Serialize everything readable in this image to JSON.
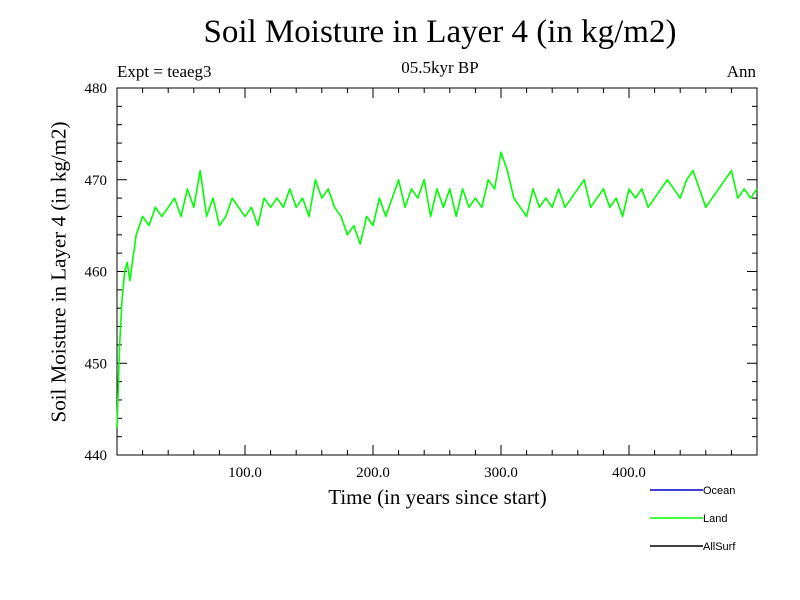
{
  "header": {
    "title": "Soil Moisture in Layer 4 (in kg/m2)",
    "subtitle": "05.5kyr BP",
    "expt": "Expt = teaeg3",
    "season": "Ann"
  },
  "chart_data": {
    "type": "line",
    "title": "Soil Moisture in Layer 4 (in kg/m2)",
    "subtitle": "05.5kyr BP",
    "xlabel": "Time (in years since start)",
    "ylabel": "Soil Moisture in Layer 4 (in kg/m2)",
    "xlim": [
      0,
      500
    ],
    "ylim": [
      440,
      480
    ],
    "xticks": [
      100,
      200,
      300,
      400
    ],
    "xtick_labels": [
      "100.0",
      "200.0",
      "300.0",
      "400.0"
    ],
    "yticks": [
      440,
      450,
      460,
      470,
      480
    ],
    "ytick_labels": [
      "440",
      "450",
      "460",
      "470",
      "480"
    ],
    "grid": false,
    "legend": {
      "position": "bottom-right",
      "entries": [
        {
          "name": "Ocean",
          "color": "#0000cc"
        },
        {
          "name": "Land",
          "color": "#00ff00"
        },
        {
          "name": "AllSurf",
          "color": "#000000"
        }
      ]
    },
    "series": [
      {
        "name": "Land",
        "color": "#00ff00",
        "x_step": 5,
        "x": [
          0,
          2,
          4,
          6,
          8,
          10,
          15,
          20,
          25,
          30,
          35,
          40,
          45,
          50,
          55,
          60,
          65,
          70,
          75,
          80,
          85,
          90,
          95,
          100,
          105,
          110,
          115,
          120,
          125,
          130,
          135,
          140,
          145,
          150,
          155,
          160,
          165,
          170,
          175,
          180,
          185,
          190,
          195,
          200,
          205,
          210,
          215,
          220,
          225,
          230,
          235,
          240,
          245,
          250,
          255,
          260,
          265,
          270,
          275,
          280,
          285,
          290,
          295,
          300,
          305,
          310,
          315,
          320,
          325,
          330,
          335,
          340,
          345,
          350,
          355,
          360,
          365,
          370,
          375,
          380,
          385,
          390,
          395,
          400,
          405,
          410,
          415,
          420,
          425,
          430,
          435,
          440,
          445,
          450,
          455,
          460,
          465,
          470,
          475,
          480,
          485,
          490,
          495,
          500
        ],
        "values": [
          443,
          452,
          457,
          460,
          461,
          459,
          464,
          466,
          465,
          467,
          466,
          467,
          468,
          466,
          469,
          467,
          471,
          466,
          468,
          465,
          466,
          468,
          467,
          466,
          467,
          465,
          468,
          467,
          468,
          467,
          469,
          467,
          468,
          466,
          470,
          468,
          469,
          467,
          466,
          464,
          465,
          463,
          466,
          465,
          468,
          466,
          468,
          470,
          467,
          469,
          468,
          470,
          466,
          469,
          467,
          469,
          466,
          469,
          467,
          468,
          467,
          470,
          469,
          473,
          471,
          468,
          467,
          466,
          469,
          467,
          468,
          467,
          469,
          467,
          468,
          469,
          470,
          467,
          468,
          469,
          467,
          468,
          466,
          469,
          468,
          469,
          467,
          468,
          469,
          470,
          469,
          468,
          470,
          471,
          469,
          467,
          468,
          469,
          470,
          471,
          468,
          469,
          468,
          469
        ]
      }
    ]
  }
}
